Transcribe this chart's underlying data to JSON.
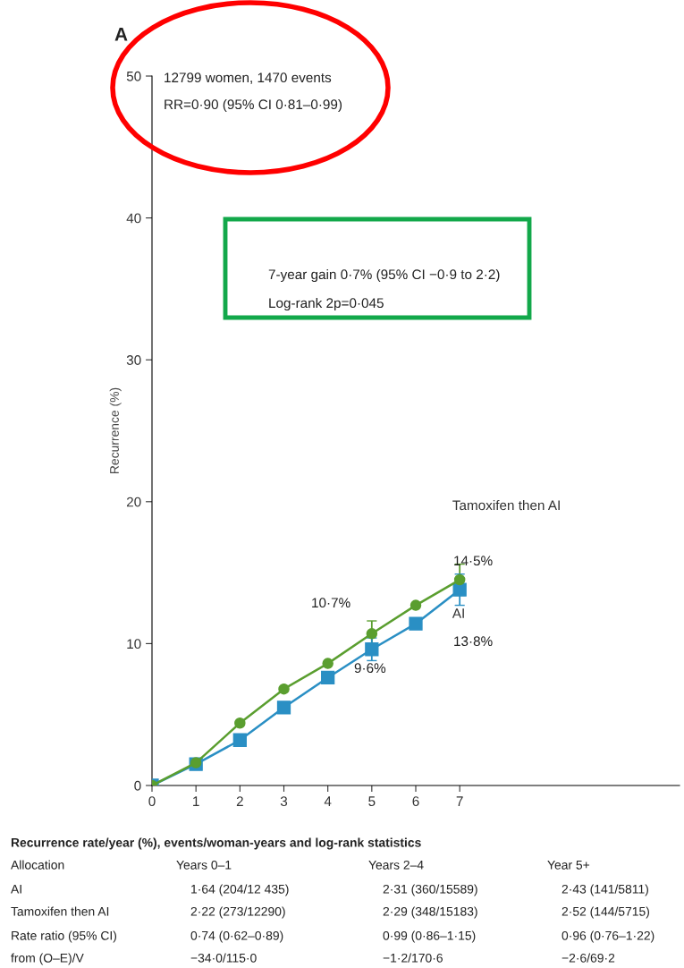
{
  "chart_data": {
    "type": "line",
    "ylabel": "Recurrence (%)",
    "xlim": [
      0,
      12
    ],
    "xticks": [
      0,
      1,
      2,
      3,
      4,
      5,
      6,
      7
    ],
    "ylim": [
      0,
      50
    ],
    "yticks": [
      0,
      10,
      20,
      30,
      40,
      50
    ],
    "grid": false,
    "legend": false,
    "line_style": "solid",
    "series": [
      {
        "name": "Tamoxifen then AI",
        "color": "#5a9e2f",
        "marker": "circle",
        "x": [
          0,
          1,
          2,
          3,
          4,
          5,
          6,
          7
        ],
        "values": [
          0,
          1.6,
          4.4,
          6.8,
          8.6,
          10.7,
          12.7,
          14.5
        ],
        "errors": [
          null,
          null,
          null,
          null,
          null,
          0.9,
          null,
          1.1
        ]
      },
      {
        "name": "AI",
        "color": "#2a8fc4",
        "marker": "square",
        "x": [
          0,
          1,
          2,
          3,
          4,
          5,
          6,
          7
        ],
        "values": [
          0,
          1.5,
          3.2,
          5.5,
          7.6,
          9.6,
          11.4,
          13.8
        ],
        "errors": [
          null,
          null,
          null,
          null,
          null,
          0.8,
          null,
          1.1
        ]
      }
    ],
    "annotations": [
      "10·7%",
      "9·6%",
      "14·5%",
      "13·8%",
      "A",
      "12799 women, 1470 events",
      "RR=0·90 (95% CI 0·81–0·99)",
      "7-year gain 0·7% (95% CI −0·9 to 2·2)",
      "Log-rank 2p=0·045",
      "Recurrence rate/year (%), events/woman-years and log-rank statistics",
      "Allocation",
      "Years 0–1",
      "Years 2–4",
      "Year 5+",
      "AI",
      "1·64 (204/12 435)",
      "2·31 (360/15589)",
      "2·43 (141/5811)",
      "Tamoxifen then AI",
      "2·22 (273/12290)",
      "2·29 (348/15183)",
      "2·52 (144/5715)",
      "Rate ratio (95% CI)",
      "0·74 (0·62–0·89)",
      "0·99 (0·86–1·15)",
      "0·96 (0·76–1·22)",
      "from (O–E)/V",
      "−34·0/115·0",
      "−1·2/170·6",
      "−2·6/69·2"
    ]
  }
}
